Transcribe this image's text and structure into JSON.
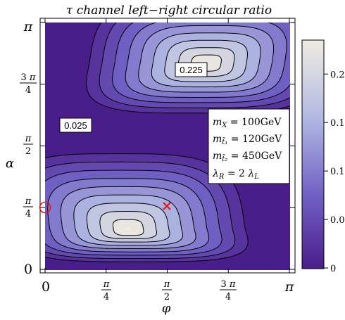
{
  "chart_data": {
    "type": "contour",
    "title": "τ channel left−right circular ratio",
    "xlabel": "φ",
    "ylabel": "α",
    "xlim": [
      0,
      3.14159
    ],
    "ylim": [
      0,
      3.14159
    ],
    "x_ticks": [
      {
        "value": 0,
        "label": "0"
      },
      {
        "value": 0.7854,
        "label": "π/4"
      },
      {
        "value": 1.5708,
        "label": "π/2"
      },
      {
        "value": 2.3562,
        "label": "3π/4"
      },
      {
        "value": 3.14159,
        "label": "π"
      }
    ],
    "y_ticks": [
      {
        "value": 0,
        "label": "0"
      },
      {
        "value": 0.7854,
        "label": "π/4"
      },
      {
        "value": 1.5708,
        "label": "π/2"
      },
      {
        "value": 2.3562,
        "label": "3π/4"
      },
      {
        "value": 3.14159,
        "label": "π"
      }
    ],
    "contour_levels": [
      0.025,
      0.05,
      0.075,
      0.1,
      0.125,
      0.15,
      0.175,
      0.2,
      0.225
    ],
    "contour_labels": [
      {
        "text": "0.225",
        "x": 1.9,
        "y": 2.5
      },
      {
        "text": "0.025",
        "x": 0.38,
        "y": 1.82
      }
    ],
    "peaks": [
      {
        "x": 1.07,
        "y": 0.52,
        "value": 0.235
      },
      {
        "x": 2.07,
        "y": 2.62,
        "value": 0.235
      }
    ],
    "markers": [
      {
        "type": "cross",
        "x": 1.57,
        "y": 0.79,
        "color": "#e8141c"
      },
      {
        "type": "circle",
        "x": 0.0,
        "y": 0.79,
        "color": "#e8141c"
      }
    ],
    "legend_text": {
      "line1": "m_X = 100GeV",
      "line2": "m_t̃1 = 120GeV",
      "line3": "m_t̃2 = 450GeV",
      "line4": "λ_R = 2 λ_L"
    },
    "colorbar": {
      "min": 0,
      "max": 0.235,
      "ticks": [
        {
          "value": 0,
          "label": "0"
        },
        {
          "value": 0.05,
          "label": "0.05"
        },
        {
          "value": 0.1,
          "label": "0.10"
        },
        {
          "value": 0.15,
          "label": "0.15"
        },
        {
          "value": 0.2,
          "label": "0.20"
        }
      ],
      "colors": [
        "#4a1e8a",
        "#7262c6",
        "#b1b9e2",
        "#f1ece1"
      ]
    }
  }
}
